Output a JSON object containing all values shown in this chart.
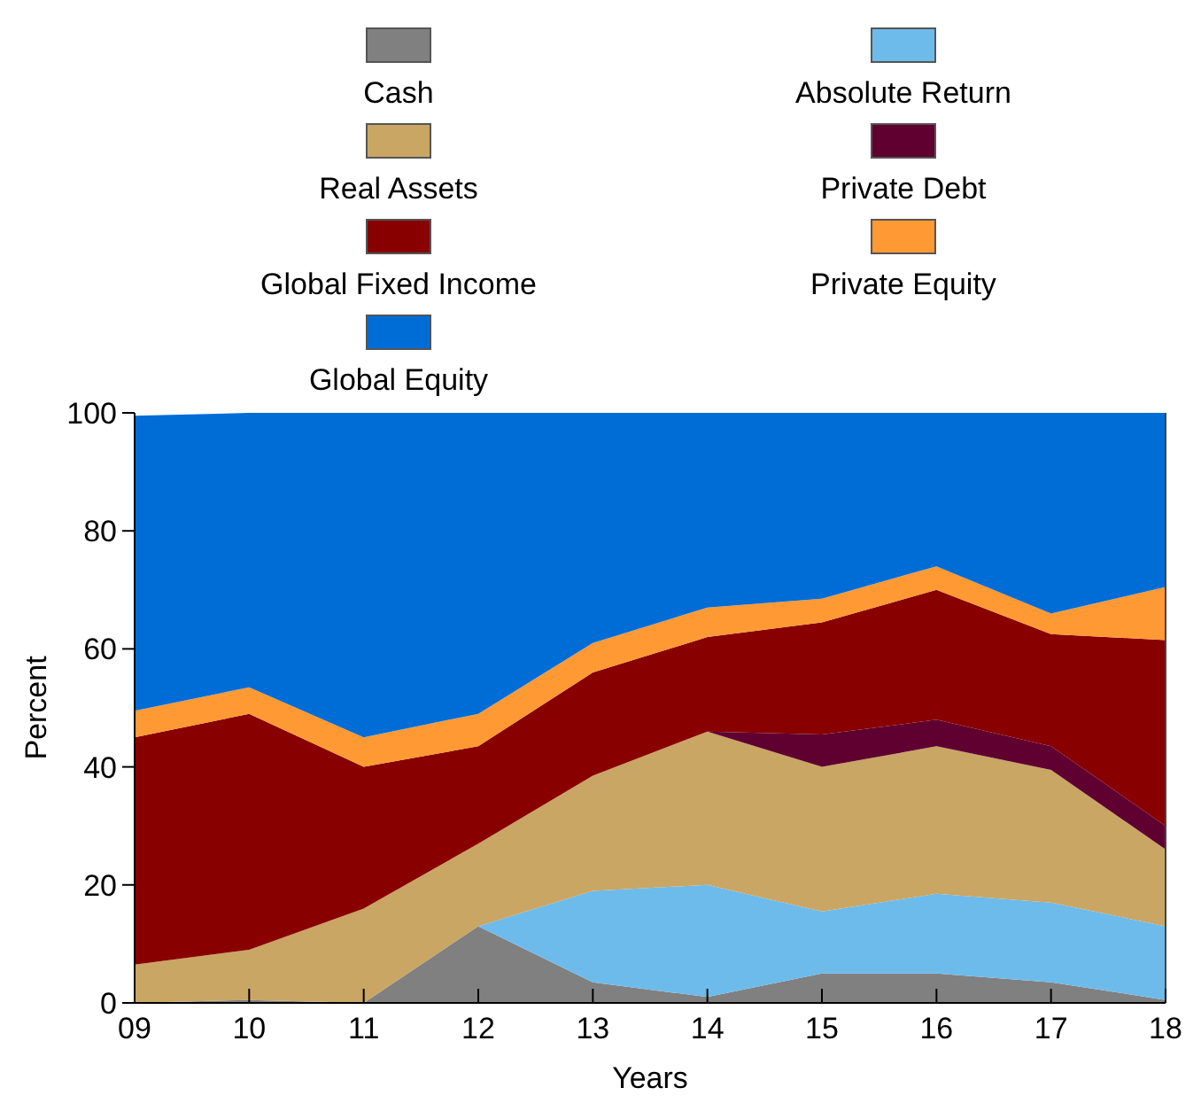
{
  "chart_data": {
    "type": "area",
    "stacked": true,
    "xlabel": "Years",
    "ylabel": "Percent",
    "categories": [
      "09",
      "10",
      "11",
      "12",
      "13",
      "14",
      "15",
      "16",
      "17",
      "18"
    ],
    "ylim": [
      0,
      100
    ],
    "yticks": [
      0,
      20,
      40,
      60,
      80,
      100
    ],
    "legend": "top",
    "grid": false,
    "series": [
      {
        "name": "Cash",
        "color": "#808080",
        "values": [
          0,
          0.5,
          0,
          13,
          3.5,
          1,
          5,
          5,
          3.5,
          0.5
        ]
      },
      {
        "name": "Absolute Return",
        "color": "#6dbbeb",
        "values": [
          0,
          0,
          0,
          0,
          15.5,
          19,
          10.5,
          13.5,
          13.5,
          12.5
        ]
      },
      {
        "name": "Real Assets",
        "color": "#c9a663",
        "values": [
          6.5,
          8.5,
          16,
          14,
          19.5,
          26,
          24.5,
          25,
          22.5,
          13
        ]
      },
      {
        "name": "Private Debt",
        "color": "#600030",
        "values": [
          0,
          0,
          0,
          0,
          0,
          0,
          5.5,
          4.5,
          4,
          4
        ]
      },
      {
        "name": "Global Fixed Income",
        "color": "#880000",
        "values": [
          38.5,
          40,
          24,
          16.5,
          17.5,
          16,
          19,
          22,
          19,
          31.5
        ]
      },
      {
        "name": "Private Equity",
        "color": "#ff9933",
        "values": [
          4.5,
          4.5,
          5,
          5.5,
          5,
          5,
          4,
          4,
          3.5,
          9
        ]
      },
      {
        "name": "Global Equity",
        "color": "#006cd6",
        "values": [
          50,
          46.5,
          55,
          51,
          39,
          33,
          31.5,
          26,
          34,
          29.5
        ]
      }
    ]
  }
}
